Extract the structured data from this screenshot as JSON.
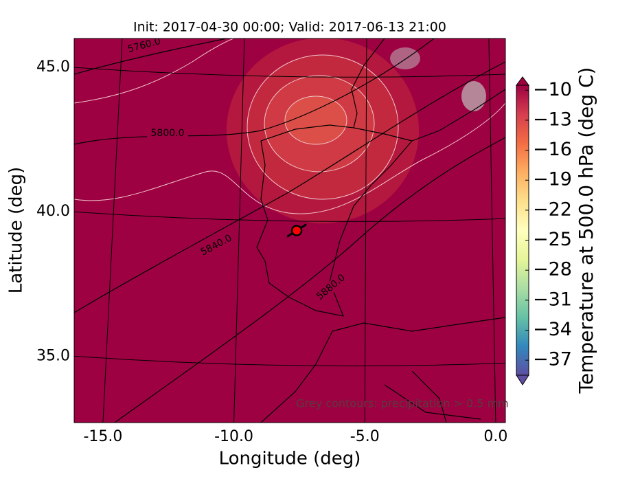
{
  "chart_data": {
    "type": "map",
    "title": "Init: 2017-04-30 00:00; Valid: 2017-06-13 21:00",
    "xlabel": "Longitude (deg)",
    "ylabel": "Latitude (deg)",
    "xlim": [
      -16.1,
      0.37
    ],
    "ylim": [
      32.7,
      46.0
    ],
    "xticks": [
      {
        "value": -15,
        "label": "-15.0"
      },
      {
        "value": -10,
        "label": "-10.0"
      },
      {
        "value": -5,
        "label": "-5.0"
      },
      {
        "value": 0,
        "label": "0.0"
      }
    ],
    "yticks": [
      {
        "value": 35,
        "label": "35.0"
      },
      {
        "value": 40,
        "label": "40.0"
      },
      {
        "value": 45,
        "label": "45.0"
      }
    ],
    "background_color": "#9e0142",
    "contours": [
      {
        "value": 5760,
        "label": "5760.0"
      },
      {
        "value": 5800,
        "label": "5800.0"
      },
      {
        "value": 5840,
        "label": "5840.0"
      },
      {
        "value": 5880,
        "label": "5880.0"
      }
    ],
    "marker": {
      "lon": -7.6,
      "lat": 39.35,
      "color": "#ff0000"
    },
    "note": "Grey contours: precipitation > 0.5 mm",
    "colorbar": {
      "label": "Temperature at 500.0 hPa (deg C)",
      "lim": [
        -38.5,
        -9.5
      ],
      "ticks": [
        {
          "value": -10,
          "label": "−10"
        },
        {
          "value": -13,
          "label": "−13"
        },
        {
          "value": -16,
          "label": "−16"
        },
        {
          "value": -19,
          "label": "−19"
        },
        {
          "value": -22,
          "label": "−22"
        },
        {
          "value": -25,
          "label": "−25"
        },
        {
          "value": -28,
          "label": "−28"
        },
        {
          "value": -31,
          "label": "−31"
        },
        {
          "value": -34,
          "label": "−34"
        },
        {
          "value": -37,
          "label": "−37"
        }
      ],
      "colors": [
        "#5e4fa2",
        "#3288bd",
        "#66c2a5",
        "#abdda4",
        "#e6f598",
        "#ffffbf",
        "#fee08b",
        "#fdae61",
        "#f46d43",
        "#d53e4f",
        "#9e0142"
      ]
    }
  }
}
